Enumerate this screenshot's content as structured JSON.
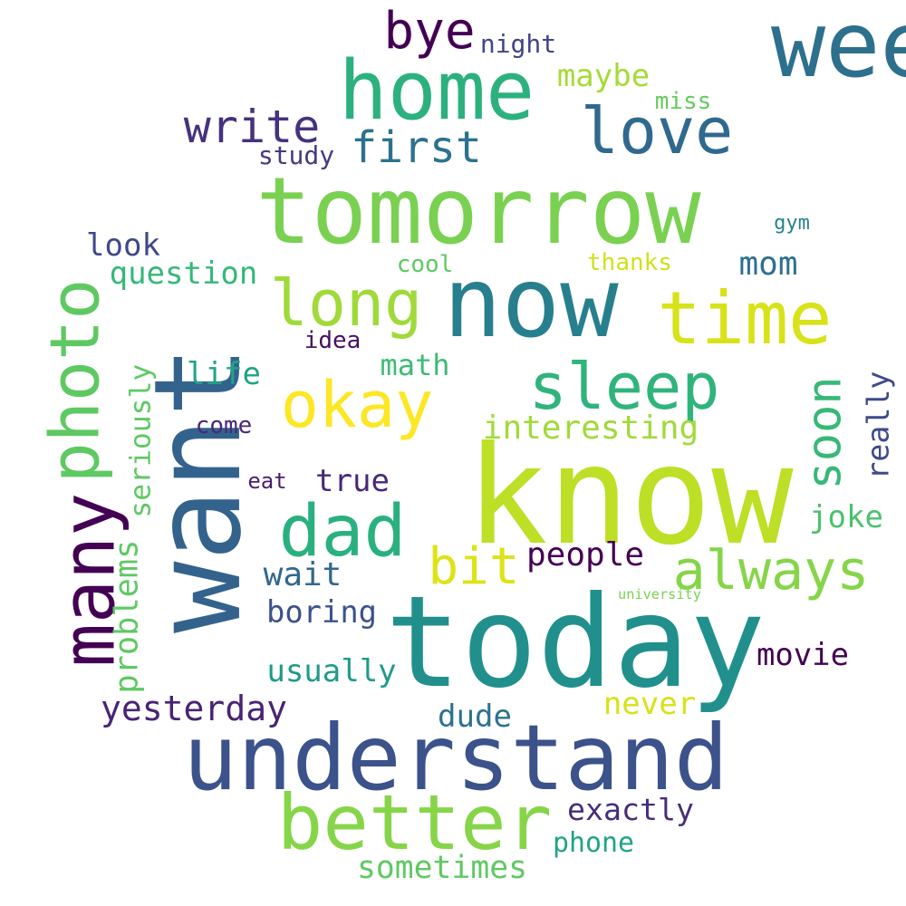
{
  "words": [
    {
      "text": "want",
      "color": "#33638d"
    },
    {
      "text": "tomorrow",
      "color": "#7ad151"
    },
    {
      "text": "know",
      "color": "#bddf26"
    },
    {
      "text": "today",
      "color": "#21908d"
    },
    {
      "text": "now",
      "color": "#277f8e"
    },
    {
      "text": "understand",
      "color": "#3b528b"
    },
    {
      "text": "home",
      "color": "#2cb17e"
    },
    {
      "text": "many",
      "color": "#440154"
    },
    {
      "text": "better",
      "color": "#86d549"
    },
    {
      "text": "time",
      "color": "#d8e219"
    },
    {
      "text": "sleep",
      "color": "#2fb47c"
    },
    {
      "text": "dad",
      "color": "#2ab07f"
    },
    {
      "text": "photo",
      "color": "#5ec962"
    },
    {
      "text": "okay",
      "color": "#fde725"
    },
    {
      "text": "long",
      "color": "#9fda3a"
    },
    {
      "text": "love",
      "color": "#30698e"
    },
    {
      "text": "always",
      "color": "#86d549"
    },
    {
      "text": "bit",
      "color": "#dde318"
    },
    {
      "text": "soon",
      "color": "#37b878"
    },
    {
      "text": "bye",
      "color": "#440154"
    },
    {
      "text": "write",
      "color": "#46327e"
    },
    {
      "text": "first",
      "color": "#2c728e"
    },
    {
      "text": "interesting",
      "color": "#a0da39"
    },
    {
      "text": "yesterday",
      "color": "#482475"
    },
    {
      "text": "exactly",
      "color": "#472d7b"
    },
    {
      "text": "usually",
      "color": "#1f9a8a"
    },
    {
      "text": "people",
      "color": "#440154"
    },
    {
      "text": "problems",
      "color": "#5ec962"
    },
    {
      "text": "sometimes",
      "color": "#5ec962"
    },
    {
      "text": "question",
      "color": "#35b779"
    },
    {
      "text": "never",
      "color": "#d8e219"
    },
    {
      "text": "wait",
      "color": "#31688e"
    },
    {
      "text": "boring",
      "color": "#3b528b"
    },
    {
      "text": "maybe",
      "color": "#a5db36"
    },
    {
      "text": "seriously",
      "color": "#5ec962"
    },
    {
      "text": "movie",
      "color": "#440154"
    },
    {
      "text": "really",
      "color": "#3e4a89"
    },
    {
      "text": "mom",
      "color": "#2d708e"
    },
    {
      "text": "joke",
      "color": "#4ac16d"
    },
    {
      "text": "dude",
      "color": "#2c728e"
    },
    {
      "text": "look",
      "color": "#3e4989"
    },
    {
      "text": "true",
      "color": "#482878"
    },
    {
      "text": "week",
      "color": "#2d708e"
    },
    {
      "text": "math",
      "color": "#3cbb75"
    },
    {
      "text": "life",
      "color": "#20a386"
    },
    {
      "text": "phone",
      "color": "#20a386"
    },
    {
      "text": "night",
      "color": "#414487"
    },
    {
      "text": "thanks",
      "color": "#d0e11c"
    },
    {
      "text": "cool",
      "color": "#5ec962"
    },
    {
      "text": "study",
      "color": "#443a83"
    },
    {
      "text": "miss",
      "color": "#65cb5e"
    },
    {
      "text": "come",
      "color": "#482878"
    },
    {
      "text": "idea",
      "color": "#471063"
    },
    {
      "text": "eat",
      "color": "#481f70"
    },
    {
      "text": "gym",
      "color": "#25838e"
    },
    {
      "text": "university",
      "color": "#7ad151"
    }
  ]
}
